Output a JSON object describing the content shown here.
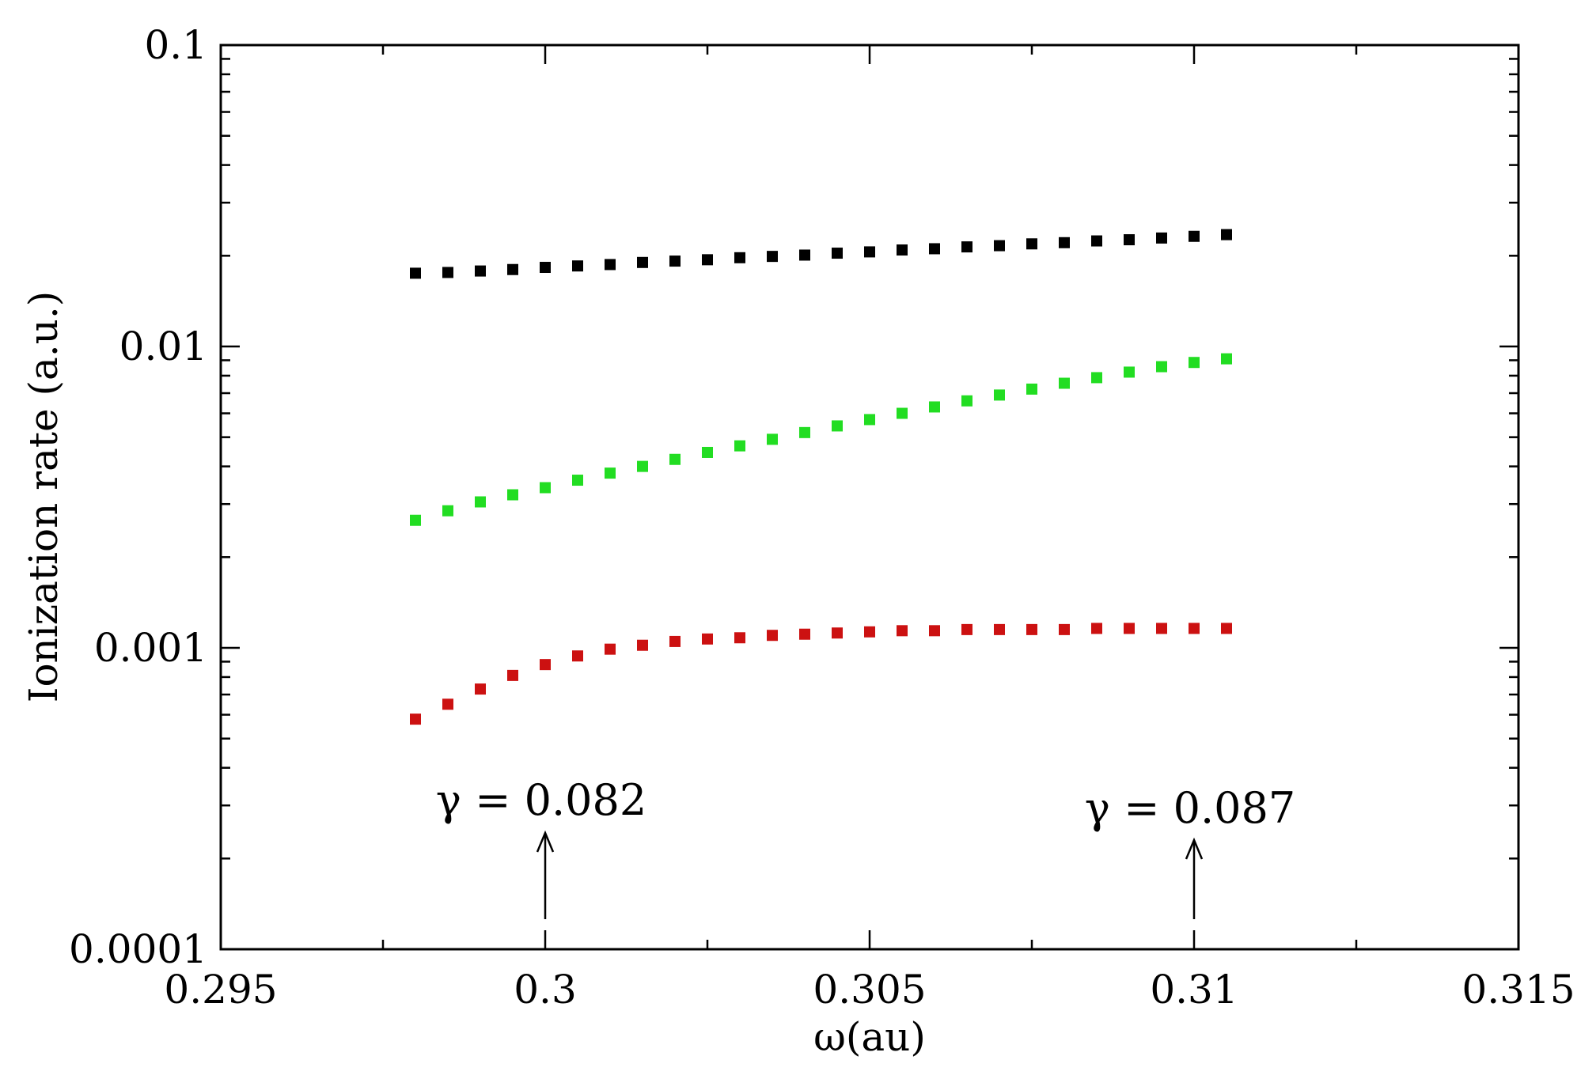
{
  "chart_data": {
    "type": "scatter",
    "xlabel": "ω(au)",
    "ylabel": "Ionization rate (a.u.)",
    "xlim": [
      0.295,
      0.315
    ],
    "ylim": [
      0.0001,
      0.1
    ],
    "yscale": "log",
    "grid": false,
    "x_ticks": [
      "0.295",
      "0.3",
      "0.305",
      "0.31",
      "0.315"
    ],
    "y_ticks": [
      "0.0001",
      "0.001",
      "0.01",
      "0.1"
    ],
    "x": [
      0.298,
      0.2985,
      0.299,
      0.2995,
      0.3,
      0.3005,
      0.301,
      0.3015,
      0.302,
      0.3025,
      0.303,
      0.3035,
      0.304,
      0.3045,
      0.305,
      0.3055,
      0.306,
      0.3065,
      0.307,
      0.3075,
      0.308,
      0.3085,
      0.309,
      0.3095,
      0.31,
      0.3105
    ],
    "series": [
      {
        "color": "#000000",
        "values": [
          0.0175,
          0.0176,
          0.0178,
          0.018,
          0.0183,
          0.0185,
          0.0187,
          0.019,
          0.0192,
          0.0194,
          0.0197,
          0.0199,
          0.0201,
          0.0204,
          0.0206,
          0.0209,
          0.0211,
          0.0214,
          0.0216,
          0.0219,
          0.0221,
          0.0224,
          0.0226,
          0.0229,
          0.0232,
          0.0235
        ]
      },
      {
        "color": "#22dd22",
        "values": [
          0.00265,
          0.00285,
          0.00305,
          0.00322,
          0.0034,
          0.0036,
          0.0038,
          0.004,
          0.00422,
          0.00445,
          0.00468,
          0.00492,
          0.00518,
          0.00545,
          0.00572,
          0.006,
          0.0063,
          0.0066,
          0.0069,
          0.00722,
          0.00755,
          0.00788,
          0.00822,
          0.00857,
          0.00885,
          0.0091
        ]
      },
      {
        "color": "#cc1111",
        "values": [
          0.00058,
          0.00065,
          0.00073,
          0.00081,
          0.00088,
          0.00094,
          0.00099,
          0.00102,
          0.00105,
          0.00107,
          0.00108,
          0.0011,
          0.00111,
          0.00112,
          0.00113,
          0.00114,
          0.00114,
          0.00115,
          0.00115,
          0.00115,
          0.00115,
          0.00116,
          0.00116,
          0.00116,
          0.00116,
          0.00116
        ]
      }
    ],
    "annotations": [
      {
        "text": "γ = 0.082",
        "x": 0.3
      },
      {
        "text": "γ = 0.087",
        "x": 0.31
      }
    ]
  }
}
